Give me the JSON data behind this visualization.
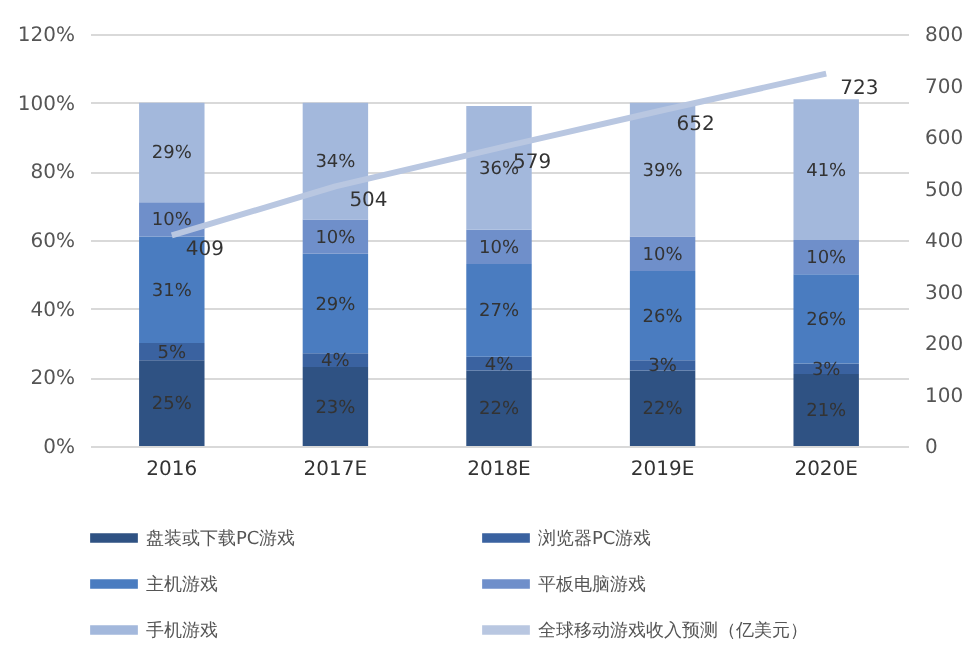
{
  "chart_data": {
    "type": "bar",
    "stacked": true,
    "categories": [
      "2016",
      "2017E",
      "2018E",
      "2019E",
      "2020E"
    ],
    "ylim": [
      0,
      120
    ],
    "yticks": [
      {
        "value": 0,
        "label": "0%"
      },
      {
        "value": 20,
        "label": "20%"
      },
      {
        "value": 40,
        "label": "40%"
      },
      {
        "value": 60,
        "label": "60%"
      },
      {
        "value": 80,
        "label": "80%"
      },
      {
        "value": 100,
        "label": "100%"
      },
      {
        "value": 120,
        "label": "120%"
      }
    ],
    "y2lim": [
      0,
      800
    ],
    "y2ticks": [
      0,
      100,
      200,
      300,
      400,
      500,
      600,
      700,
      800
    ],
    "grid": "y",
    "legend": "bottom",
    "series": [
      {
        "name": "盘装或下载PC游戏",
        "color": "#2f5283",
        "values": [
          25,
          23,
          22,
          22,
          21
        ],
        "value_labels": [
          "25%",
          "23%",
          "22%",
          "22%",
          "21%"
        ]
      },
      {
        "name": "浏览器PC游戏",
        "color": "#3a62a0",
        "values": [
          5,
          4,
          4,
          3,
          3
        ],
        "value_labels": [
          "5%",
          "4%",
          "4%",
          "3%",
          "3%"
        ]
      },
      {
        "name": "主机游戏",
        "color": "#4a7cc0",
        "values": [
          31,
          29,
          27,
          26,
          26
        ],
        "value_labels": [
          "31%",
          "29%",
          "27%",
          "26%",
          "26%"
        ]
      },
      {
        "name": "平板电脑游戏",
        "color": "#6f8fca",
        "values": [
          10,
          10,
          10,
          10,
          10
        ],
        "value_labels": [
          "10%",
          "10%",
          "10%",
          "10%",
          "10%"
        ]
      },
      {
        "name": "手机游戏",
        "color": "#a3b8dc",
        "values": [
          29,
          34,
          36,
          39,
          41
        ],
        "value_labels": [
          "29%",
          "34%",
          "36%",
          "39%",
          "41%"
        ]
      },
      {
        "name": "全球移动游戏收入预测（亿美元）",
        "type": "line",
        "axis": "y2",
        "color": "#b9c7e1",
        "values": [
          409,
          504,
          579,
          652,
          723
        ],
        "value_labels": [
          "409",
          "504",
          "579",
          "652",
          "723"
        ]
      }
    ]
  }
}
